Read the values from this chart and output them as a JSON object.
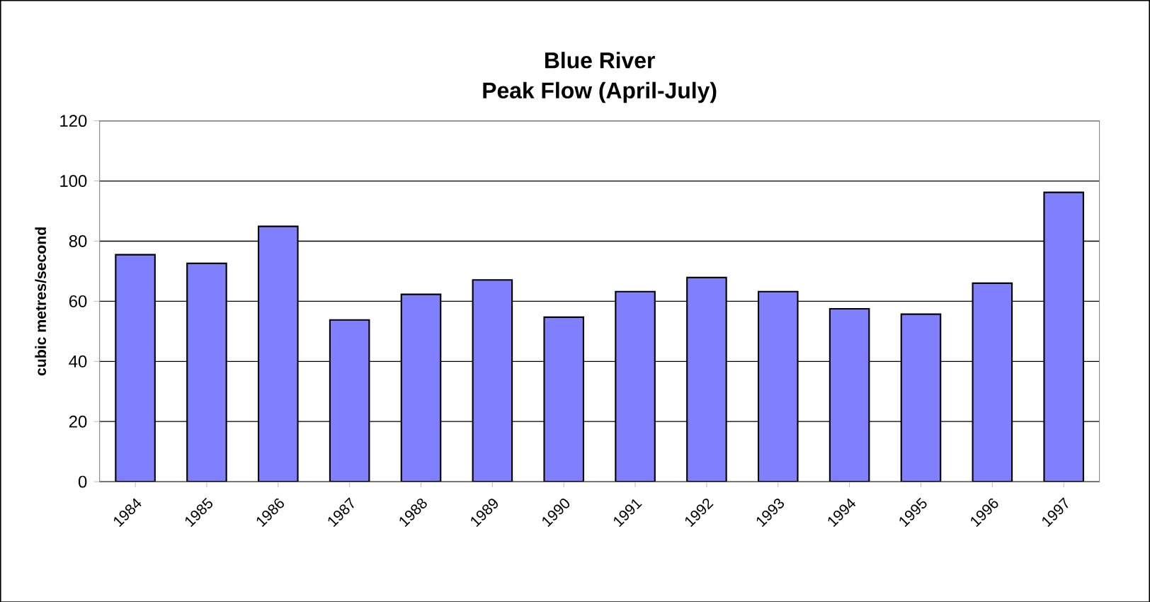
{
  "chart_data": {
    "type": "bar",
    "title": "Blue River",
    "subtitle": "Peak Flow (April-July)",
    "ylabel": "cubic metres/second",
    "categories": [
      "1984",
      "1985",
      "1986",
      "1987",
      "1988",
      "1989",
      "1990",
      "1991",
      "1992",
      "1993",
      "1994",
      "1995",
      "1996",
      "1997"
    ],
    "values": [
      75.5,
      72.6,
      84.9,
      53.8,
      62.3,
      67.1,
      54.7,
      63.2,
      67.9,
      63.2,
      57.5,
      55.7,
      66,
      96.2
    ],
    "color": "#8080ff",
    "ylim": [
      0,
      120
    ],
    "yticks": [
      0,
      20,
      40,
      60,
      80,
      100,
      120
    ],
    "grid": "y"
  }
}
